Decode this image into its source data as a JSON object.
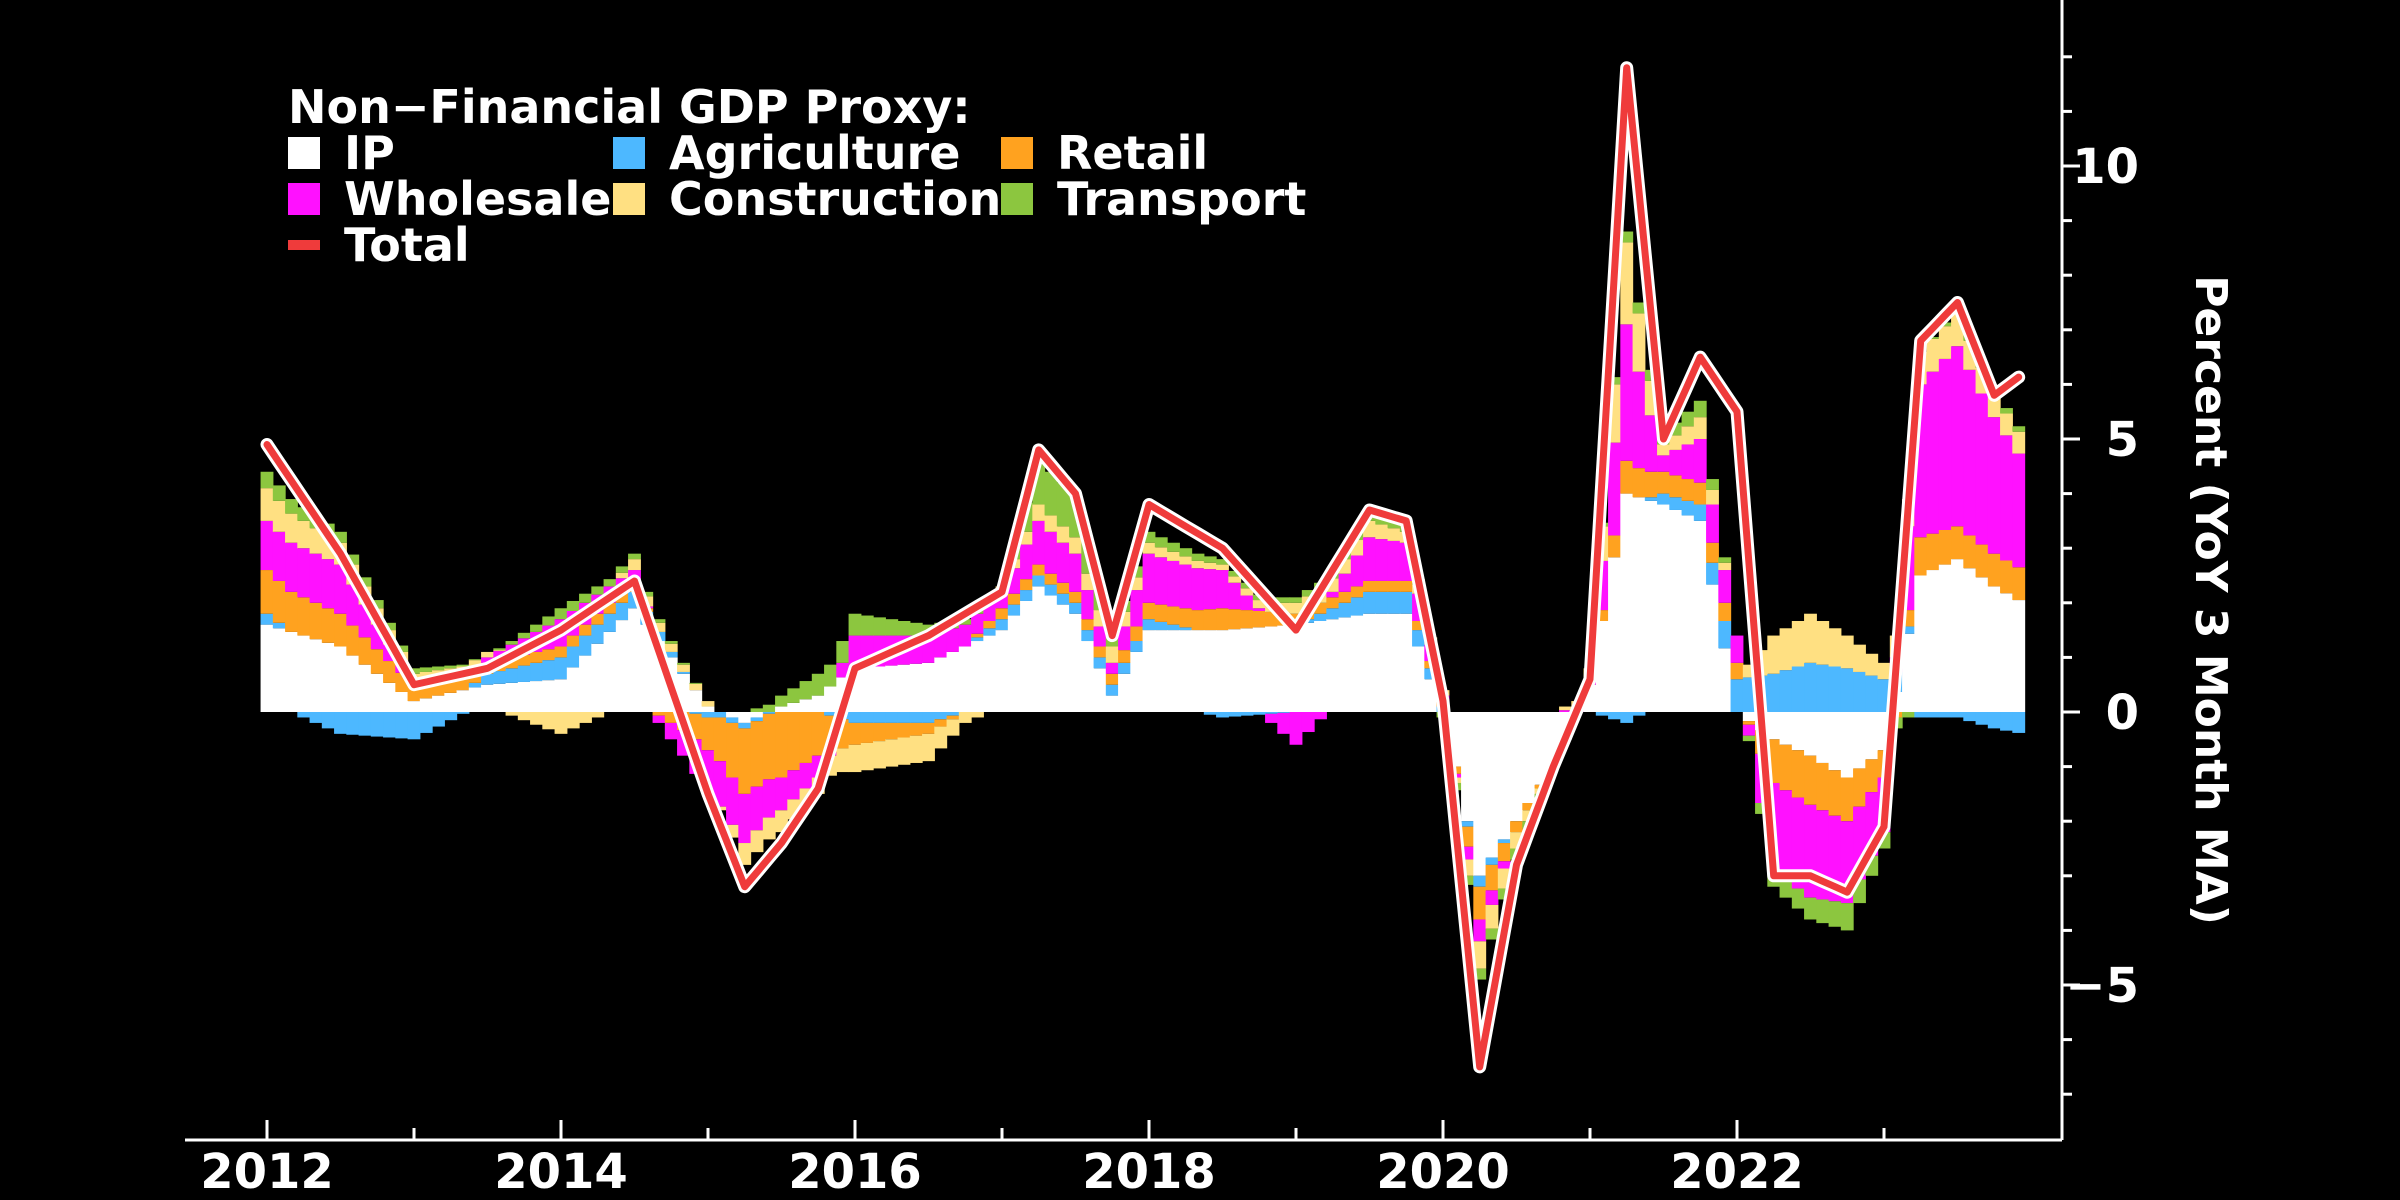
{
  "chart_data": {
    "type": "area",
    "title": "Non−Financial GDP Proxy:",
    "ylabel": "Percent (YoY 3 Month MA)",
    "xlabel": "",
    "xlim": [
      2012,
      2024.0
    ],
    "ylim": [
      -7.5,
      13
    ],
    "xticks": [
      2012,
      2014,
      2016,
      2018,
      2020,
      2022
    ],
    "xtick_labels": [
      "2012",
      "2014",
      "2016",
      "2018",
      "2020",
      "2022"
    ],
    "yticks": [
      -5,
      0,
      5,
      10
    ],
    "ytick_labels": [
      "−5",
      "0",
      "5",
      "10"
    ],
    "legend_position": "top-left",
    "grid": false,
    "colors": {
      "background": "#000000",
      "IP": "#ffffff",
      "Agriculture": "#4db8ff",
      "Retail": "#ffa21f",
      "Wholesale": "#ff11ff",
      "Construction": "#ffe082",
      "Transport": "#8cc63f",
      "Total": "#ef3b3b"
    },
    "legend": [
      {
        "name": "IP",
        "kind": "box"
      },
      {
        "name": "Agriculture",
        "kind": "box"
      },
      {
        "name": "Retail",
        "kind": "box"
      },
      {
        "name": "Wholesale",
        "kind": "box"
      },
      {
        "name": "Construction",
        "kind": "box"
      },
      {
        "name": "Transport",
        "kind": "box"
      },
      {
        "name": "Total",
        "kind": "line"
      }
    ],
    "anchors": {
      "x": [
        2012.0,
        2012.5,
        2013.0,
        2013.5,
        2014.0,
        2014.5,
        2015.0,
        2015.25,
        2015.5,
        2015.75,
        2016.0,
        2016.5,
        2017.0,
        2017.25,
        2017.5,
        2017.75,
        2018.0,
        2018.5,
        2019.0,
        2019.5,
        2019.75,
        2020.0,
        2020.25,
        2020.5,
        2020.75,
        2021.0,
        2021.25,
        2021.5,
        2021.75,
        2022.0,
        2022.25,
        2022.5,
        2022.75,
        2023.0,
        2023.25,
        2023.5,
        2023.75,
        2023.95
      ],
      "series": [
        {
          "name": "IP",
          "values": [
            1.6,
            1.2,
            0.2,
            0.5,
            0.6,
            1.9,
            0.1,
            -0.2,
            0.1,
            0.3,
            0.8,
            0.9,
            1.5,
            2.3,
            1.8,
            0.3,
            1.5,
            1.5,
            1.6,
            1.8,
            1.8,
            0.0,
            -3.0,
            -2.0,
            -1.0,
            0.5,
            4.0,
            3.8,
            3.5,
            0.0,
            -0.5,
            -0.8,
            -1.2,
            -0.7,
            2.5,
            2.8,
            2.3,
            2.0
          ]
        },
        {
          "name": "Agriculture",
          "values": [
            0.2,
            -0.4,
            -0.5,
            0.2,
            0.4,
            0.3,
            -0.1,
            -0.1,
            0.0,
            0.0,
            -0.2,
            -0.2,
            0.2,
            0.2,
            0.2,
            0.2,
            0.2,
            -0.1,
            0.0,
            0.4,
            0.4,
            0.1,
            -0.2,
            0.0,
            0.0,
            0.0,
            -0.2,
            0.2,
            0.3,
            0.6,
            0.7,
            0.9,
            0.8,
            0.6,
            -0.1,
            -0.1,
            -0.3,
            -0.4
          ]
        },
        {
          "name": "Retail",
          "values": [
            0.8,
            0.6,
            0.3,
            0.2,
            0.2,
            0.2,
            -0.6,
            -1.2,
            -1.2,
            -0.8,
            -0.4,
            -0.2,
            0.2,
            0.2,
            0.2,
            0.2,
            0.3,
            0.4,
            0.2,
            0.2,
            0.2,
            0.1,
            -0.6,
            -0.2,
            0.0,
            0.0,
            0.6,
            0.4,
            0.4,
            0.3,
            -0.8,
            -0.9,
            -0.8,
            -0.5,
            0.7,
            0.6,
            0.6,
            0.6
          ]
        },
        {
          "name": "Wholesale",
          "values": [
            0.9,
            0.9,
            0.0,
            0.1,
            0.5,
            0.2,
            -0.8,
            -0.9,
            -0.6,
            -0.4,
            0.6,
            0.5,
            0.3,
            0.8,
            0.7,
            0.2,
            0.9,
            0.7,
            -0.6,
            0.8,
            0.7,
            0.1,
            -0.4,
            0.0,
            0.0,
            0.1,
            2.5,
            0.3,
            0.8,
            0.5,
            -1.6,
            -1.7,
            -1.5,
            -1.0,
            2.8,
            3.3,
            2.5,
            2.0
          ]
        },
        {
          "name": "Construction",
          "values": [
            0.6,
            0.4,
            0.2,
            0.1,
            -0.4,
            0.2,
            0.1,
            -0.4,
            -0.4,
            -0.3,
            -0.5,
            -0.5,
            0.1,
            0.3,
            0.3,
            0.3,
            0.2,
            0.1,
            0.2,
            0.3,
            0.2,
            0.1,
            -0.5,
            -0.3,
            0.0,
            0.2,
            1.5,
            0.2,
            0.4,
            0.0,
            0.7,
            0.9,
            0.6,
            0.3,
            0.6,
            0.6,
            0.4,
            0.4
          ]
        },
        {
          "name": "Transport",
          "values": [
            0.3,
            0.2,
            0.1,
            0.0,
            0.2,
            0.1,
            0.0,
            0.0,
            0.2,
            0.4,
            0.4,
            0.2,
            0.0,
            0.8,
            0.8,
            0.2,
            0.2,
            0.1,
            0.1,
            0.2,
            0.2,
            -0.1,
            -0.2,
            -0.2,
            0.0,
            0.0,
            0.2,
            0.2,
            0.3,
            0.0,
            -0.3,
            -0.4,
            -0.5,
            -0.3,
            0.0,
            0.1,
            0.1,
            0.1
          ]
        }
      ],
      "total": [
        4.9,
        2.9,
        0.5,
        0.8,
        1.5,
        2.4,
        -1.5,
        -3.2,
        -2.4,
        -1.4,
        0.8,
        1.4,
        2.2,
        4.8,
        4.0,
        1.4,
        3.8,
        3.0,
        1.5,
        3.7,
        3.5,
        0.2,
        -6.5,
        -2.8,
        -1.0,
        0.6,
        11.8,
        5.0,
        6.5,
        5.5,
        -3.0,
        -3.0,
        -3.3,
        -2.1,
        6.8,
        7.5,
        5.8,
        6.2
      ]
    }
  }
}
